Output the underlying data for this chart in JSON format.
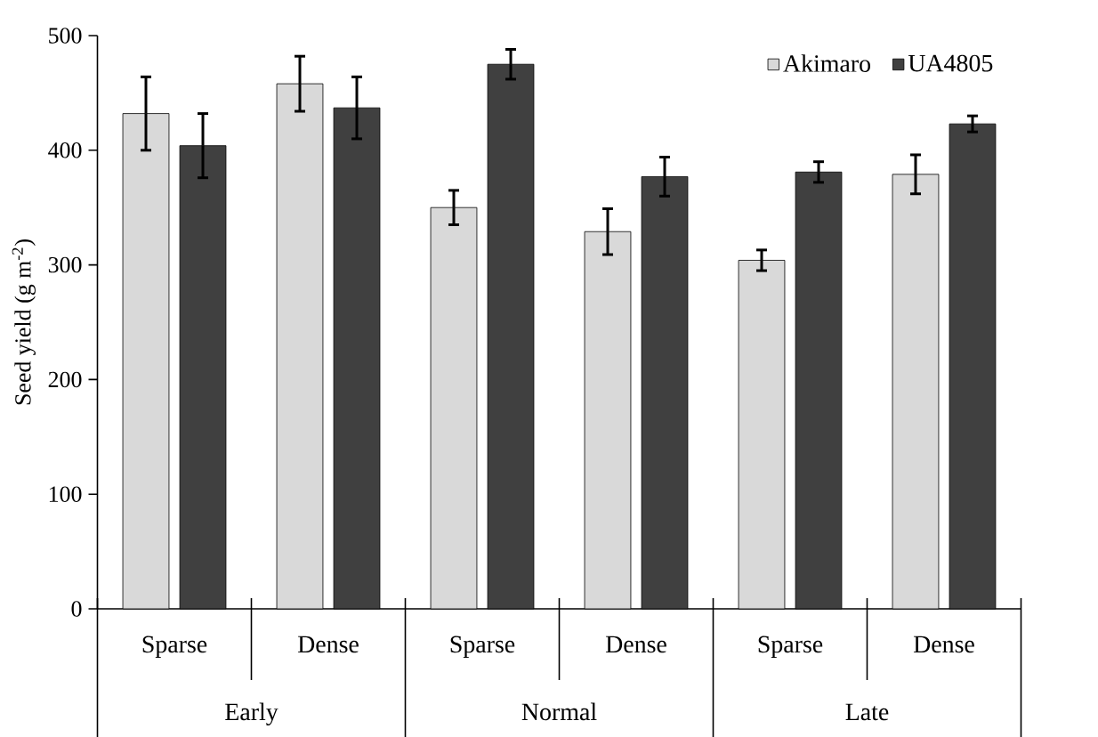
{
  "chart_data": {
    "type": "bar",
    "ylabel": "Seed yield (g m$^{-2}$)",
    "categories": [
      "Sparse",
      "Dense",
      "Sparse",
      "Dense",
      "Sparse",
      "Dense"
    ],
    "annotations": [
      "Early",
      "Normal",
      "Late"
    ],
    "series": [
      {
        "name": "Akimaro",
        "color": "#d9d9d9",
        "values": [
          432,
          458,
          350,
          329,
          304,
          379
        ],
        "errors": [
          32,
          24,
          15,
          20,
          9,
          17
        ]
      },
      {
        "name": "UA4805",
        "color": "#404040",
        "values": [
          404,
          437,
          475,
          377,
          381,
          423
        ],
        "errors": [
          28,
          27,
          13,
          17,
          9,
          7
        ]
      }
    ],
    "ylim": [
      0,
      500
    ],
    "yticks": [
      0,
      100,
      200,
      300,
      400,
      500
    ],
    "grid": false,
    "legend": "top right"
  }
}
